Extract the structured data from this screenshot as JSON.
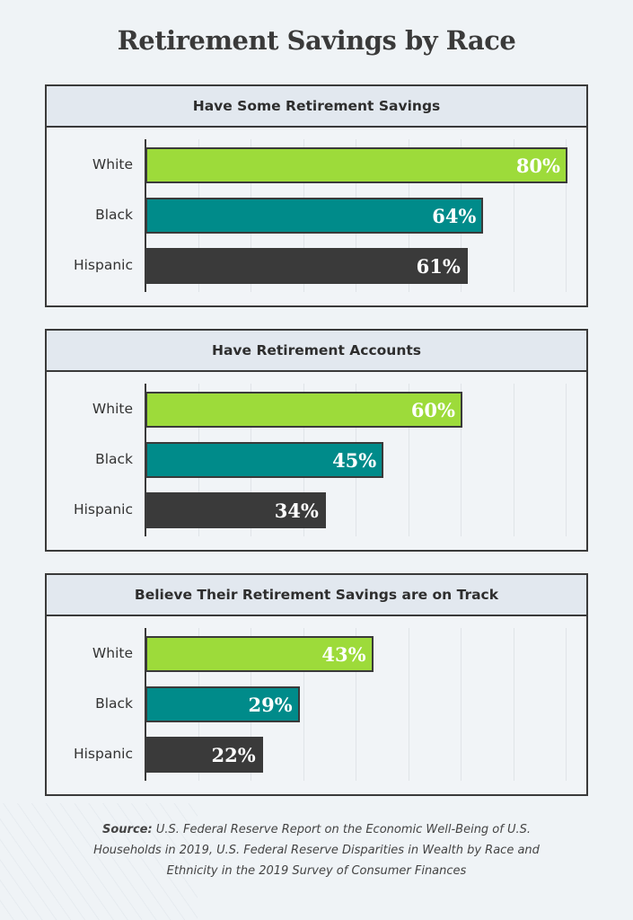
{
  "title": "Retirement Savings by Race",
  "colors": {
    "White": "#9ddb3a",
    "Black": "#008b8a",
    "Hispanic": "#3a3a3a",
    "border": "#3a3a3a",
    "header_bg": "#e2e8ef",
    "background": "#eff3f6"
  },
  "chart_data": [
    {
      "type": "bar",
      "orientation": "horizontal",
      "title": "Have Some Retirement Savings",
      "categories": [
        "White",
        "Black",
        "Hispanic"
      ],
      "values": [
        80,
        64,
        61
      ],
      "labels": [
        "80%",
        "64%",
        "61%"
      ],
      "xlim": [
        0,
        80
      ],
      "grid": true,
      "grid_step": 10
    },
    {
      "type": "bar",
      "orientation": "horizontal",
      "title": "Have Retirement Accounts",
      "categories": [
        "White",
        "Black",
        "Hispanic"
      ],
      "values": [
        60,
        45,
        34
      ],
      "labels": [
        "60%",
        "45%",
        "34%"
      ],
      "xlim": [
        0,
        80
      ],
      "grid": true,
      "grid_step": 10
    },
    {
      "type": "bar",
      "orientation": "horizontal",
      "title": "Believe Their Retirement Savings are on Track",
      "categories": [
        "White",
        "Black",
        "Hispanic"
      ],
      "values": [
        43,
        29,
        22
      ],
      "labels": [
        "43%",
        "29%",
        "22%"
      ],
      "xlim": [
        0,
        80
      ],
      "grid": true,
      "grid_step": 10
    }
  ],
  "source": {
    "label": "Source:",
    "text": "U.S. Federal Reserve Report on the Economic Well-Being of U.S. Households in 2019, U.S. Federal Reserve Disparities in Wealth by Race and Ethnicity in the 2019 Survey of Consumer Finances"
  }
}
